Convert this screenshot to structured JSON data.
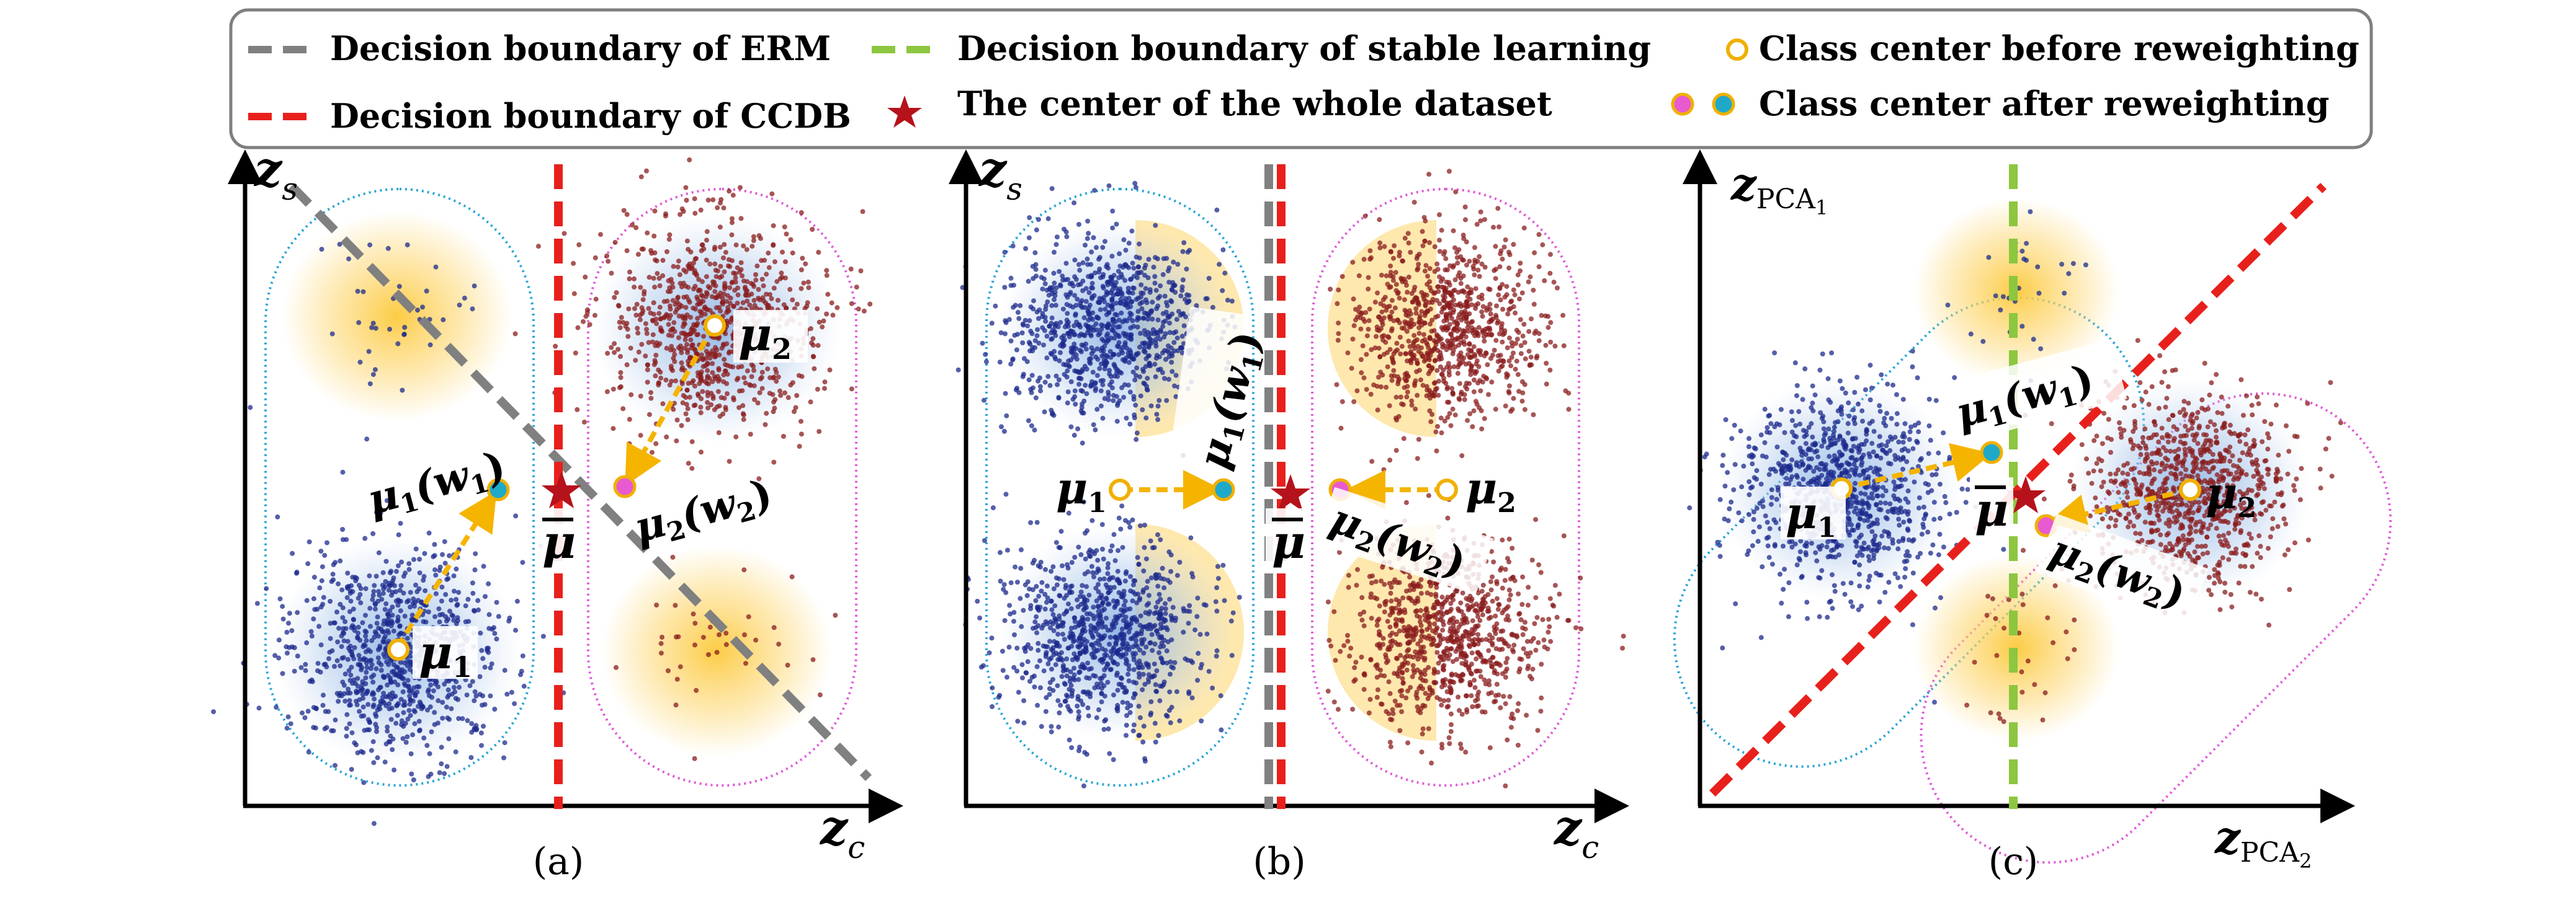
{
  "legend": {
    "items": [
      {
        "label": "Decision boundary of ERM",
        "marker": "gray-dashed-line"
      },
      {
        "label": "Decision boundary of stable learning",
        "marker": "green-dashed-line"
      },
      {
        "label": "Class center before reweighting",
        "marker": "hollow-yellow-circle"
      },
      {
        "label": "Decision boundary of CCDB",
        "marker": "red-dashed-line"
      },
      {
        "label": "The center of the whole dataset",
        "marker": "red-star"
      },
      {
        "label": "Class center after reweighting",
        "marker": "pink-and-cyan-dots"
      }
    ]
  },
  "panels": [
    {
      "caption": "(a)",
      "y_axis": {
        "symbol": "z",
        "subscript": "s"
      },
      "x_axis": {
        "symbol": "z",
        "subscript": "c"
      },
      "labels": {
        "mu1": "μ",
        "mu1_sub": "1",
        "mu2": "μ",
        "mu2_sub": "2",
        "mu1w": "μ",
        "mu1w_sub": "1",
        "mu1w_arg": "(w",
        "mu1w_arg_sub": "1",
        "mu1w_close": ")",
        "mu2w": "μ",
        "mu2w_sub": "2",
        "mu2w_arg": "(w",
        "mu2w_arg_sub": "2",
        "mu2w_close": ")",
        "mubar": "μ"
      }
    },
    {
      "caption": "(b)",
      "y_axis": {
        "symbol": "z",
        "subscript": "s"
      },
      "x_axis": {
        "symbol": "z",
        "subscript": "c"
      },
      "labels": {
        "mu1": "μ",
        "mu1_sub": "1",
        "mu2": "μ",
        "mu2_sub": "2",
        "mu1w": "μ",
        "mu1w_sub": "1",
        "mu1w_arg": "(w",
        "mu1w_arg_sub": "1",
        "mu1w_close": ")",
        "mu2w": "μ",
        "mu2w_sub": "2",
        "mu2w_arg": "(w",
        "mu2w_arg_sub": "2",
        "mu2w_close": ")",
        "mubar": "μ"
      }
    },
    {
      "caption": "(c)",
      "y_axis": {
        "symbol": "z",
        "subscript": "PCA",
        "subsub": "1"
      },
      "x_axis": {
        "symbol": "z",
        "subscript": "PCA",
        "subsub": "2"
      },
      "labels": {
        "mu1": "μ",
        "mu1_sub": "1",
        "mu2": "μ",
        "mu2_sub": "2",
        "mu1w": "μ",
        "mu1w_sub": "1",
        "mu1w_arg": "(w",
        "mu1w_arg_sub": "1",
        "mu1w_close": ")",
        "mu2w": "μ",
        "mu2w_sub": "2",
        "mu2w_arg": "(w",
        "mu2w_arg_sub": "2",
        "mu2w_close": ")",
        "mubar": "μ"
      }
    }
  ],
  "colors": {
    "erm": "#808080",
    "ccdb": "#e8201c",
    "stable": "#8dc63f",
    "star": "#b5121b",
    "class1_points": "#1c2a8c",
    "class2_points": "#8a1c1c",
    "minority_glow": "#fdd56b",
    "class1_glow": "#a9c6ea",
    "class2_glow": "#c8d7ee",
    "arrow": "#f5b400",
    "center_before": "#f0b000",
    "center_after_1": "#1fa9c9",
    "center_after_2": "#e85ad0",
    "cluster1_border": "#29a6d6",
    "cluster2_border": "#e05ad8"
  }
}
